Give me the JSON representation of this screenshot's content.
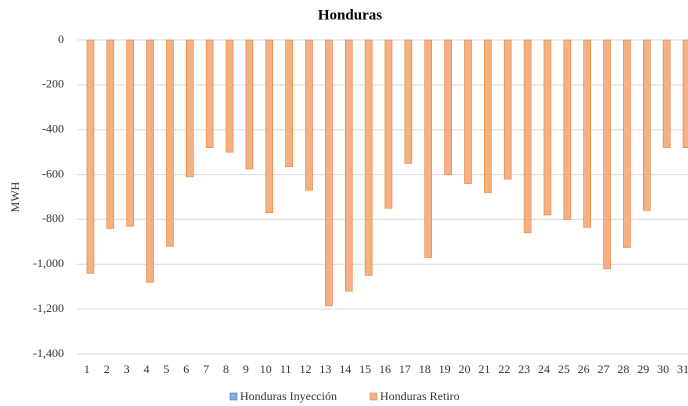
{
  "chart_data": {
    "type": "bar",
    "title": "Honduras",
    "y_label": "MWH",
    "categories": [
      "1",
      "2",
      "3",
      "4",
      "5",
      "6",
      "7",
      "8",
      "9",
      "10",
      "11",
      "12",
      "13",
      "14",
      "15",
      "16",
      "17",
      "18",
      "19",
      "20",
      "21",
      "22",
      "23",
      "24",
      "25",
      "26",
      "27",
      "28",
      "29",
      "30",
      "31"
    ],
    "series": [
      {
        "name": "Honduras Inyección",
        "color": "#8faadc",
        "stroke": "#4472c4",
        "values": [
          0,
          0,
          0,
          0,
          0,
          0,
          0,
          0,
          0,
          0,
          0,
          0,
          0,
          0,
          0,
          0,
          0,
          0,
          0,
          0,
          0,
          0,
          0,
          0,
          0,
          0,
          0,
          0,
          0,
          0,
          0
        ]
      },
      {
        "name": "Honduras Retiro",
        "color": "#f4b183",
        "stroke": "#ed7d31",
        "values": [
          -1040,
          -840,
          -830,
          -1080,
          -920,
          -610,
          -480,
          -500,
          -575,
          -770,
          -565,
          -670,
          -1185,
          -1120,
          -1050,
          -750,
          -550,
          -970,
          -600,
          -640,
          -680,
          -620,
          -860,
          -780,
          -800,
          -835,
          -1020,
          -925,
          -760,
          -480,
          -480
        ]
      }
    ],
    "ylim": [
      -1400,
      0
    ],
    "yticks": [
      0,
      -200,
      -400,
      -600,
      -800,
      {
        "value": -1000,
        "label": "-1,000"
      },
      {
        "value": -1200,
        "label": "-1,200"
      },
      {
        "value": -1400,
        "label": "-1,400"
      }
    ],
    "grid": true,
    "legend": "bottom"
  }
}
